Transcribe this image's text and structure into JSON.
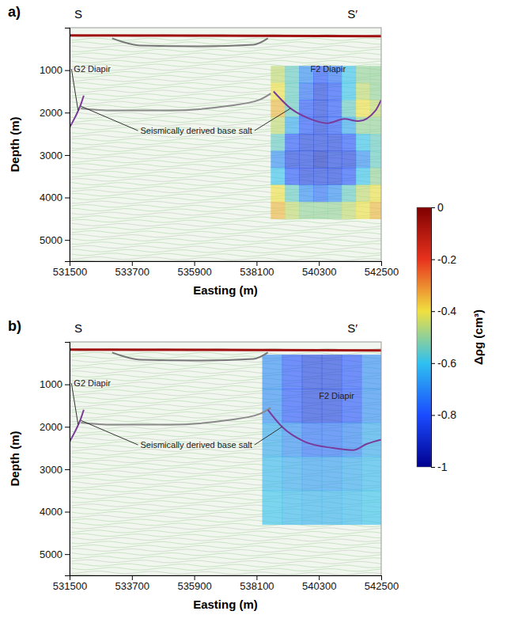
{
  "chart_data": [
    {
      "type": "heatmap",
      "panel_label": "a)",
      "section_start": "S",
      "section_end": "S′",
      "xlabel": "Easting (m)",
      "ylabel": "Depth (m)",
      "xlim": [
        531500,
        542500
      ],
      "xticks": [
        531500,
        533700,
        535900,
        538100,
        540300,
        542500
      ],
      "ylim": [
        0,
        5500
      ],
      "yticks": [
        1000,
        2000,
        3000,
        4000,
        5000
      ],
      "cells": {
        "x": [
          538600,
          539100,
          539600,
          540100,
          540600,
          541100,
          541600,
          542100,
          542500
        ],
        "y": [
          900,
          1300,
          1700,
          2100,
          2500,
          2900,
          3300,
          3700,
          4100,
          4500
        ],
        "values": [
          [
            -0.45,
            -0.55,
            -0.7,
            -0.8,
            -0.75,
            -0.6,
            -0.5,
            -0.5
          ],
          [
            -0.4,
            -0.55,
            -0.75,
            -0.85,
            -0.8,
            -0.6,
            -0.45,
            -0.5
          ],
          [
            -0.35,
            -0.55,
            -0.8,
            -0.85,
            -0.8,
            -0.55,
            -0.4,
            -0.45
          ],
          [
            -0.45,
            -0.65,
            -0.8,
            -0.85,
            -0.8,
            -0.65,
            -0.5,
            -0.5
          ],
          [
            -0.55,
            -0.8,
            -0.85,
            -0.85,
            -0.85,
            -0.8,
            -0.6,
            -0.55
          ],
          [
            -0.7,
            -0.85,
            -0.85,
            -0.9,
            -0.85,
            -0.85,
            -0.7,
            -0.55
          ],
          [
            -0.6,
            -0.8,
            -0.85,
            -0.85,
            -0.85,
            -0.8,
            -0.6,
            -0.5
          ],
          [
            -0.4,
            -0.55,
            -0.7,
            -0.75,
            -0.7,
            -0.55,
            -0.45,
            -0.4
          ],
          [
            -0.35,
            -0.45,
            -0.5,
            -0.5,
            -0.5,
            -0.45,
            -0.4,
            -0.35
          ]
        ]
      },
      "series": [
        {
          "color": "#a01010",
          "x": [
            531500,
            542500
          ],
          "values": [
            180,
            200
          ]
        },
        {
          "color": "#777777",
          "x": [
            533000,
            534000,
            536000,
            538000,
            538500
          ],
          "values": [
            250,
            420,
            440,
            400,
            250
          ]
        },
        {
          "color": "#8a8a8a",
          "x": [
            531900,
            533000,
            535000,
            537000,
            538200,
            538600
          ],
          "values": [
            1900,
            1950,
            1950,
            1850,
            1700,
            1550
          ]
        },
        {
          "color": "#7a3a9a",
          "x": [
            531500,
            531700,
            531900,
            532000
          ],
          "values": [
            2350,
            2100,
            1800,
            1600
          ]
        },
        {
          "color": "#7a3a9a",
          "x": [
            538700,
            539300,
            540000,
            540600,
            541200,
            541700,
            542300,
            542500
          ],
          "values": [
            1500,
            1900,
            2150,
            2250,
            2150,
            2200,
            1950,
            1700
          ]
        }
      ],
      "annotations": [
        {
          "text": "G2 Diapir",
          "x": 531650,
          "y": 1050,
          "targets": [
            [
              531800,
              1950
            ]
          ]
        },
        {
          "text": "Seismically derived base salt",
          "x": 534000,
          "y": 2500,
          "targets": [
            [
              531900,
              1850
            ],
            [
              539300,
              1900
            ]
          ]
        },
        {
          "text": "F2 Diapir",
          "x": 540000,
          "y": 1050,
          "targets": []
        }
      ]
    },
    {
      "type": "heatmap",
      "panel_label": "b)",
      "section_start": "S",
      "section_end": "S′",
      "xlabel": "Easting (m)",
      "ylabel": "Depth (m)",
      "xlim": [
        531500,
        542500
      ],
      "xticks": [
        531500,
        533700,
        535900,
        538100,
        540300,
        542500
      ],
      "ylim": [
        0,
        5500
      ],
      "yticks": [
        1000,
        2000,
        3000,
        4000,
        5000
      ],
      "cells": {
        "x": [
          538300,
          539000,
          539700,
          540400,
          541100,
          541800,
          542500
        ],
        "y": [
          300,
          1100,
          1900,
          2700,
          3500,
          4300
        ],
        "values": [
          [
            -0.7,
            -0.8,
            -0.85,
            -0.85,
            -0.8,
            -0.7
          ],
          [
            -0.7,
            -0.8,
            -0.85,
            -0.85,
            -0.8,
            -0.7
          ],
          [
            -0.65,
            -0.7,
            -0.75,
            -0.75,
            -0.72,
            -0.65
          ],
          [
            -0.62,
            -0.65,
            -0.67,
            -0.67,
            -0.65,
            -0.62
          ],
          [
            -0.6,
            -0.62,
            -0.63,
            -0.63,
            -0.62,
            -0.6
          ]
        ]
      },
      "series": [
        {
          "color": "#a01010",
          "x": [
            531500,
            542500
          ],
          "values": [
            180,
            200
          ]
        },
        {
          "color": "#777777",
          "x": [
            533000,
            534000,
            536000,
            538000,
            538500
          ],
          "values": [
            250,
            420,
            440,
            400,
            250
          ]
        },
        {
          "color": "#8a8a8a",
          "x": [
            531900,
            533000,
            535000,
            537000,
            538200,
            538600
          ],
          "values": [
            1900,
            1950,
            1950,
            1850,
            1700,
            1550
          ]
        },
        {
          "color": "#7a3a9a",
          "x": [
            531500,
            531700,
            531900,
            532000
          ],
          "values": [
            2350,
            2100,
            1800,
            1600
          ]
        },
        {
          "color": "#7a3a9a",
          "x": [
            538500,
            539000,
            539800,
            540800,
            541500,
            542000,
            542500
          ],
          "values": [
            1600,
            2000,
            2350,
            2500,
            2550,
            2400,
            2300
          ]
        }
      ],
      "annotations": [
        {
          "text": "G2 Diapir",
          "x": 531650,
          "y": 1050,
          "targets": [
            [
              531800,
              1950
            ]
          ]
        },
        {
          "text": "Seismically derived base salt",
          "x": 534000,
          "y": 2500,
          "targets": [
            [
              531900,
              1850
            ],
            [
              539000,
              2000
            ]
          ]
        },
        {
          "text": "F2 Diapir",
          "x": 540300,
          "y": 1350,
          "targets": []
        }
      ]
    }
  ],
  "colorbar": {
    "label": "Δρg (cm³)",
    "range": [
      -1,
      0
    ],
    "ticks": [
      0,
      -0.2,
      -0.4,
      -0.6,
      -0.8,
      -1
    ]
  }
}
